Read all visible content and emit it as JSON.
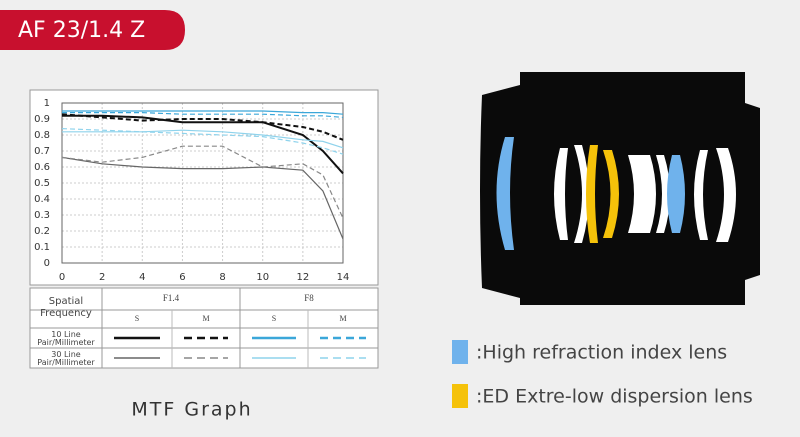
{
  "header": {
    "title": "AF 23/1.4 Z"
  },
  "chart_data": {
    "type": "line",
    "x": [
      0,
      2,
      4,
      6,
      8,
      10,
      12,
      13,
      14
    ],
    "series": [
      {
        "color": "#111111",
        "style": "solid",
        "values": [
          0.92,
          0.92,
          0.91,
          0.88,
          0.88,
          0.88,
          0.8,
          0.7,
          0.56
        ]
      },
      {
        "color": "#111111",
        "style": "dashed",
        "values": [
          0.93,
          0.91,
          0.89,
          0.9,
          0.9,
          0.88,
          0.85,
          0.82,
          0.77
        ]
      },
      {
        "color": "#666666",
        "style": "solid",
        "values": [
          0.66,
          0.62,
          0.6,
          0.59,
          0.59,
          0.6,
          0.58,
          0.45,
          0.15
        ]
      },
      {
        "color": "#888888",
        "style": "dashed",
        "values": [
          0.66,
          0.63,
          0.66,
          0.73,
          0.73,
          0.6,
          0.62,
          0.55,
          0.28
        ]
      },
      {
        "color": "#3ba7d9",
        "style": "solid",
        "values": [
          0.95,
          0.95,
          0.95,
          0.95,
          0.95,
          0.95,
          0.94,
          0.94,
          0.93
        ]
      },
      {
        "color": "#3ba7d9",
        "style": "dashed",
        "values": [
          0.94,
          0.94,
          0.94,
          0.93,
          0.93,
          0.93,
          0.92,
          0.92,
          0.91
        ]
      },
      {
        "color": "#8fd3ec",
        "style": "solid",
        "values": [
          0.82,
          0.82,
          0.82,
          0.83,
          0.82,
          0.8,
          0.77,
          0.76,
          0.72
        ]
      },
      {
        "color": "#8fd3ec",
        "style": "dashed",
        "values": [
          0.84,
          0.83,
          0.82,
          0.81,
          0.8,
          0.79,
          0.75,
          0.72,
          0.68
        ]
      }
    ],
    "xlim": [
      0,
      14
    ],
    "xticks": [
      0,
      2,
      4,
      6,
      8,
      10,
      12,
      14
    ],
    "ylim": [
      0,
      1
    ],
    "yticks": [
      0,
      0.1,
      0.2,
      0.3,
      0.4,
      0.5,
      0.6,
      0.7,
      0.8,
      0.9,
      1
    ],
    "grid": true
  },
  "table": {
    "corner": "Spatial Frequency",
    "groups": [
      "F1.4",
      "F8"
    ],
    "columns": [
      "S",
      "M",
      "S",
      "M"
    ],
    "rows": [
      "10 Line Pair/Millimeter",
      "30 Line Pair/Millimeter"
    ]
  },
  "caption": "MTF Graph",
  "lens_legend": [
    ":High refraction index lens",
    ":ED Extre-low dispersion lens"
  ]
}
